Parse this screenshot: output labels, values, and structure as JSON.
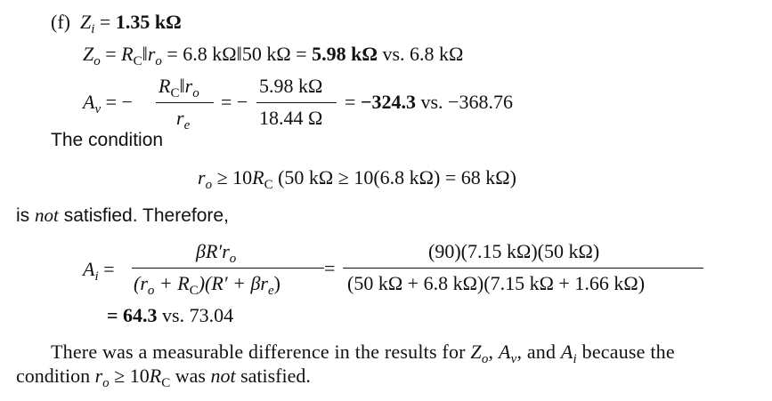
{
  "part_f": {
    "label": "(f)",
    "zi": {
      "sym": "Z",
      "sub": "i",
      "eq": "=",
      "value": "1.35 kΩ"
    },
    "zo": {
      "sym": "Z",
      "sub": "o",
      "eq": "=",
      "rc": "R",
      "rc_sub": "C",
      "par": "‖",
      "ro": "r",
      "ro_sub": "o",
      "expr": "= 6.8 kΩ‖50 kΩ =",
      "value": "5.98 kΩ",
      "compare": "vs. 6.8 kΩ"
    },
    "av": {
      "sym": "A",
      "sub": "v",
      "eq": "= −",
      "num_rc": "R",
      "num_rc_sub": "C",
      "num_par": "‖",
      "num_ro": "r",
      "num_ro_sub": "o",
      "den_re": "r",
      "den_re_sub": "e",
      "eq2": "= −",
      "num_value": "5.98 kΩ",
      "den_value": "18.44 Ω",
      "eq3": "=",
      "value": "−324.3",
      "compare": "vs. −368.76"
    },
    "condition_intro": "The condition",
    "condition": {
      "ro": "r",
      "ro_sub": "o",
      "ge": "≥ 10",
      "rc": "R",
      "rc_sub": "C",
      "check": "(50 kΩ ≥ 10(6.8 kΩ) = 68 kΩ)"
    },
    "therefore": {
      "pre": "is",
      "not": "not",
      "post": "satisfied. Therefore,"
    },
    "ai": {
      "sym": "A",
      "sub": "i",
      "eq": "=",
      "num": "βR′r",
      "num_sub": "o",
      "den_a": "(r",
      "den_a_sub": "o",
      "den_b": "+ R",
      "den_b_sub": "C",
      "den_c": ")(R′ + βr",
      "den_c_sub": "e",
      "den_d": ")",
      "eq2": "=",
      "num_value": "(90)(7.15 kΩ)(50 kΩ)",
      "den_value": "(50 kΩ + 6.8 kΩ)(7.15 kΩ + 1.66 kΩ)",
      "eq3": "=",
      "value": "64.3",
      "compare": "vs. 73.04"
    },
    "conclusion": {
      "t1": "There was a measurable difference in the results for",
      "z": "Z",
      "z_sub": "o",
      "c1": ",",
      "a": "A",
      "a_sub": "v",
      "c2": ", and",
      "ai": "A",
      "ai_sub": "i",
      "t2": "because the",
      "t3": "condition",
      "ro": "r",
      "ro_sub": "o",
      "ge": "≥ 10",
      "rc": "R",
      "rc_sub": "C",
      "t4": "was",
      "not": "not",
      "t5": "satisfied."
    }
  }
}
